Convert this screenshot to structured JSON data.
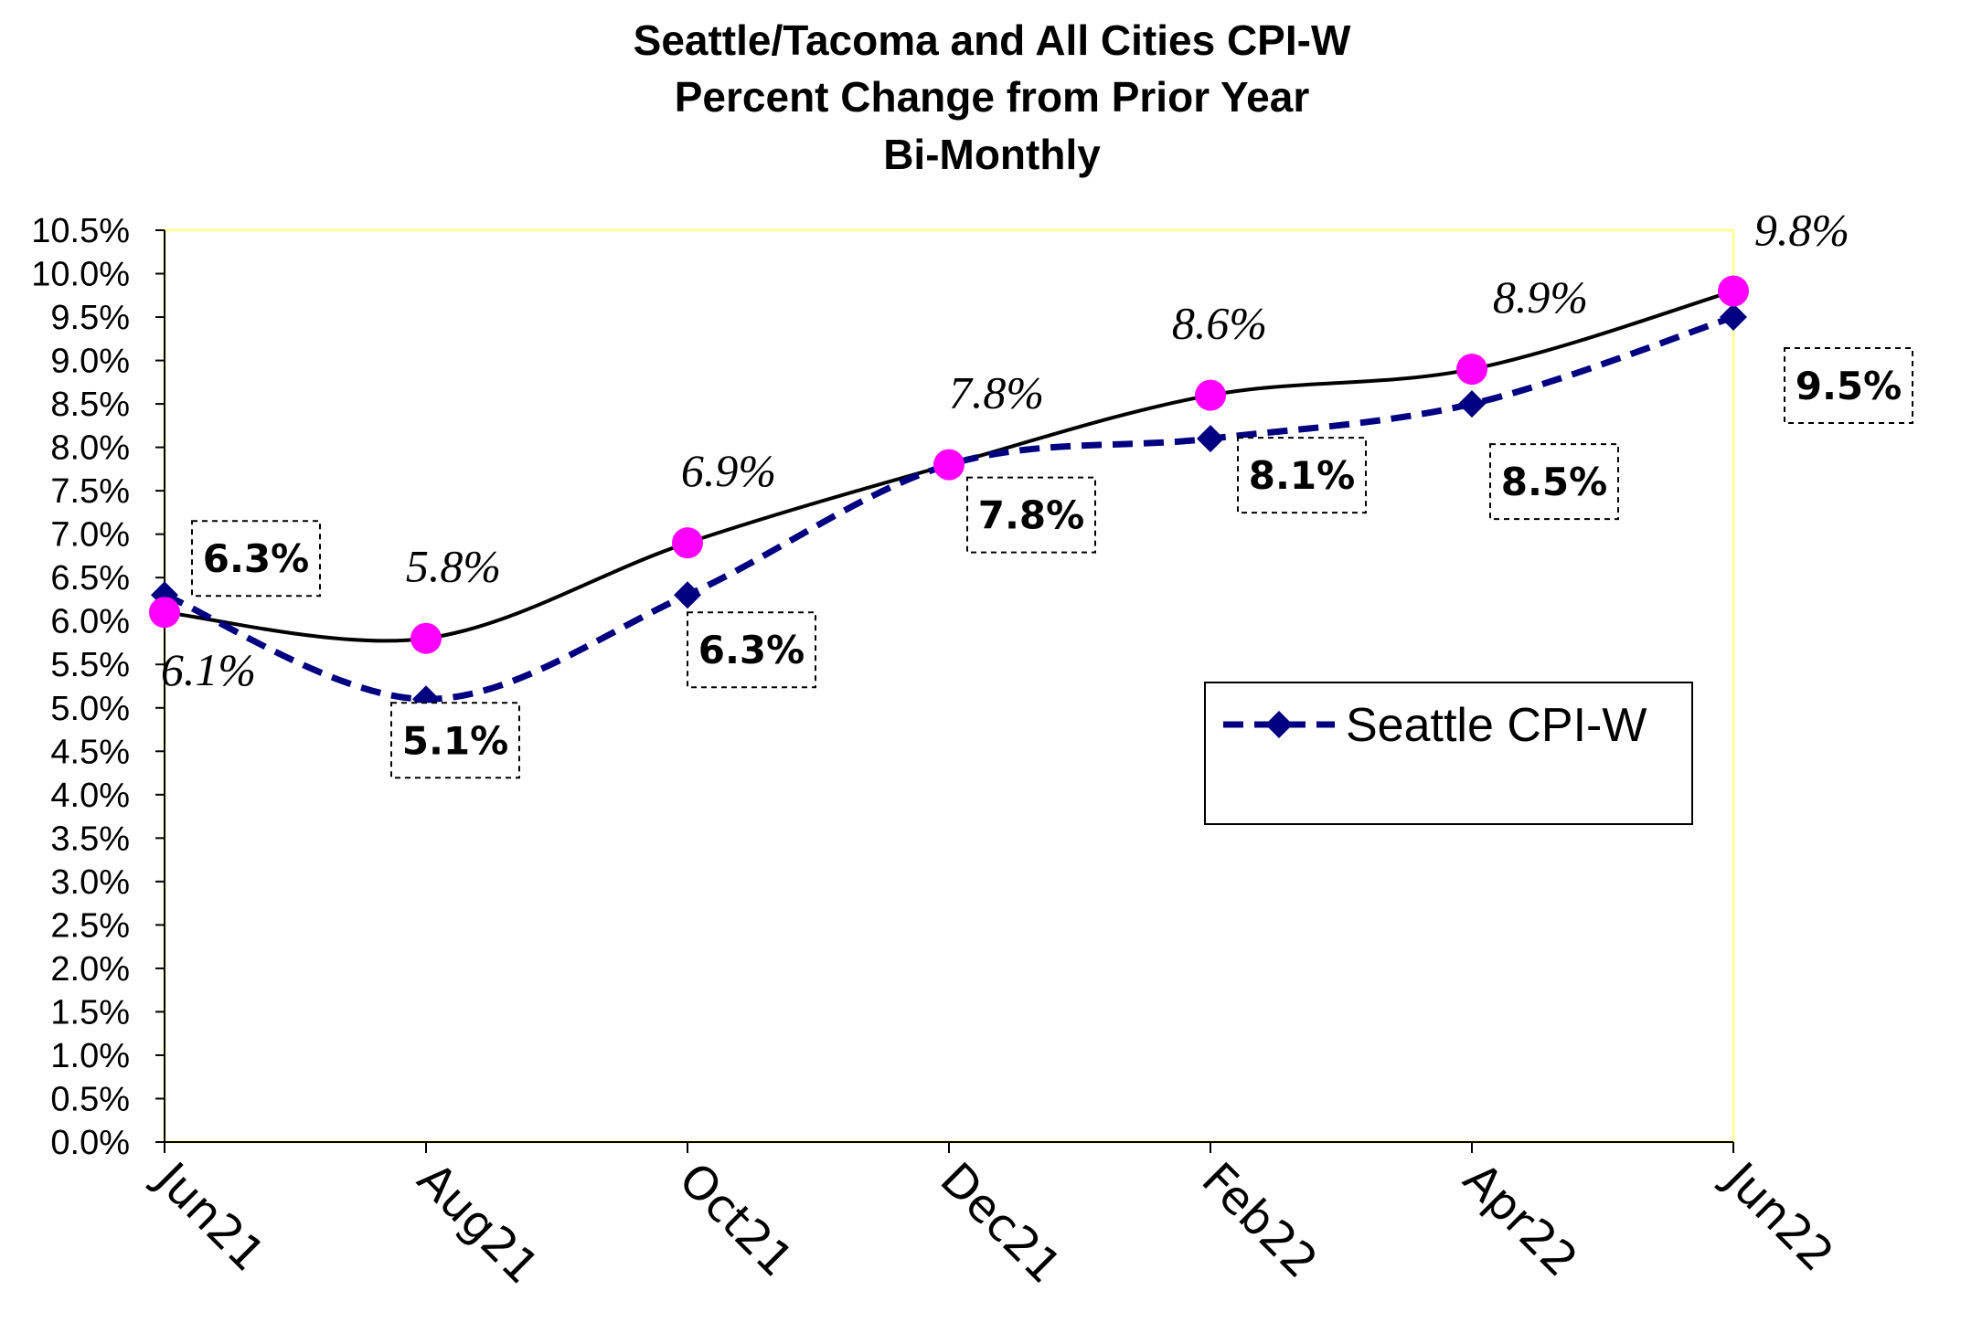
{
  "chart_data": {
    "type": "line",
    "title": [
      "Seattle/Tacoma and All Cities CPI-W",
      "Percent Change from Prior Year",
      "Bi-Monthly"
    ],
    "categories": [
      "Jun21",
      "Aug21",
      "Oct21",
      "Dec21",
      "Feb22",
      "Apr22",
      "Jun22"
    ],
    "ylim": [
      0,
      10.5
    ],
    "ystep": 0.5,
    "y_tick_labels": [
      "0.0%",
      "0.5%",
      "1.0%",
      "1.5%",
      "2.0%",
      "2.5%",
      "3.0%",
      "3.5%",
      "4.0%",
      "4.5%",
      "5.0%",
      "5.5%",
      "6.0%",
      "6.5%",
      "7.0%",
      "7.5%",
      "8.0%",
      "8.5%",
      "9.0%",
      "9.5%",
      "10.0%",
      "10.5%"
    ],
    "grid": false,
    "legend_position": "right-center",
    "series": [
      {
        "name": "Seattle CPI-W",
        "values": [
          6.3,
          5.1,
          6.3,
          7.8,
          8.1,
          8.5,
          9.5
        ],
        "labels": [
          "6.3%",
          "5.1%",
          "6.3%",
          "7.8%",
          "8.1%",
          "8.5%",
          "9.5%"
        ],
        "color": "#000080",
        "style": "dashed",
        "marker": "diamond",
        "in_legend": true
      },
      {
        "values": [
          6.1,
          5.8,
          6.9,
          7.8,
          8.6,
          8.9,
          9.8
        ],
        "labels": [
          "6.1%",
          "5.8%",
          "6.9%",
          "7.8%",
          "8.6%",
          "8.9%",
          "9.8%"
        ],
        "color": "#000000",
        "marker_color": "#FF00FF",
        "style": "solid",
        "marker": "circle",
        "in_legend": false
      }
    ],
    "plot_border_color": "#FFFF99"
  }
}
